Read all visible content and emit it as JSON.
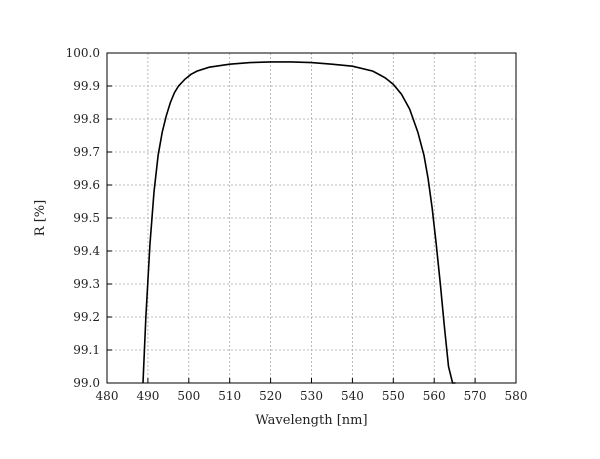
{
  "chart_data": {
    "type": "line",
    "xlabel": "Wavelength [nm]",
    "ylabel": "R [%]",
    "xlim": [
      480,
      580
    ],
    "ylim": [
      99.0,
      100.0
    ],
    "x_ticks": [
      "480",
      "490",
      "500",
      "510",
      "520",
      "530",
      "540",
      "550",
      "560",
      "570",
      "580"
    ],
    "y_ticks": [
      "99.0",
      "99.1",
      "99.2",
      "99.3",
      "99.4",
      "99.5",
      "99.6",
      "99.7",
      "99.8",
      "99.9",
      "100.0"
    ],
    "grid": true,
    "line_color": "#000000",
    "series": [
      {
        "x": [
          488.8,
          489.5,
          490.5,
          491.5,
          492.5,
          493.5,
          494.5,
          495.5,
          496.5,
          497.5,
          499,
          500.5,
          502,
          505,
          510,
          515,
          520,
          525,
          530,
          535,
          540,
          545,
          548,
          550,
          552,
          554,
          556,
          557.5,
          558.5,
          559.5,
          560.5,
          561.5,
          562.5,
          563.5,
          564.5,
          565.2
        ],
        "y": [
          99.0,
          99.2,
          99.42,
          99.58,
          99.69,
          99.76,
          99.81,
          99.85,
          99.88,
          99.9,
          99.92,
          99.935,
          99.945,
          99.957,
          99.966,
          99.971,
          99.973,
          99.973,
          99.971,
          99.966,
          99.96,
          99.945,
          99.925,
          99.905,
          99.875,
          99.83,
          99.76,
          99.69,
          99.62,
          99.53,
          99.42,
          99.3,
          99.17,
          99.05,
          99.0,
          99.0
        ]
      }
    ]
  }
}
